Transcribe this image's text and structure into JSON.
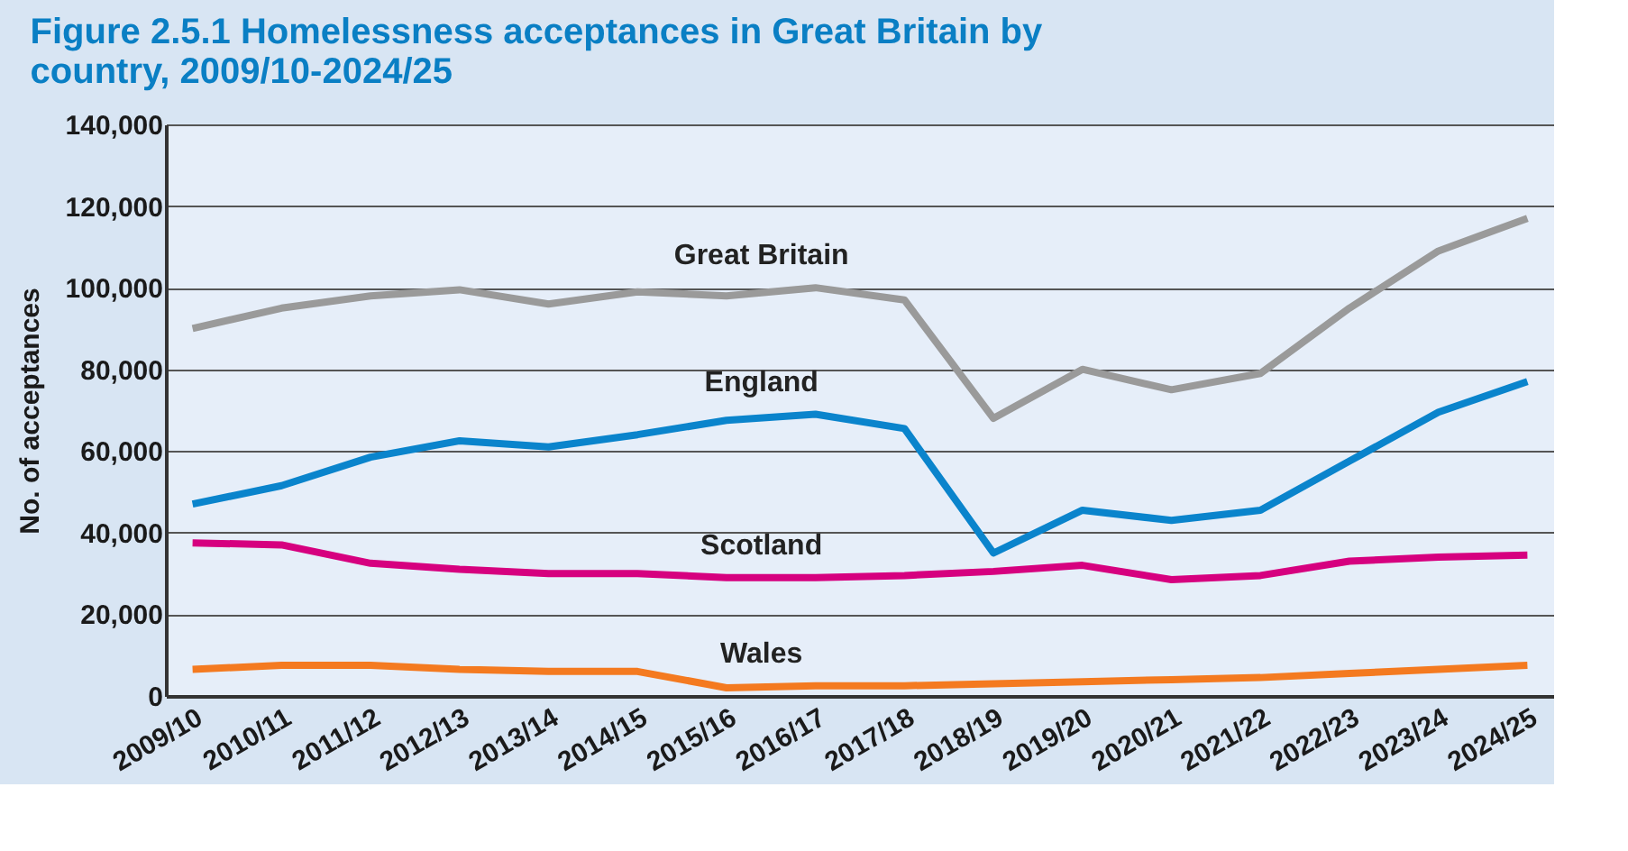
{
  "chart_data": {
    "type": "line",
    "title": "Figure 2.5.1 Homelessness acceptances in Great Britain by country, 2009/10-2024/25",
    "ylabel": "No. of acceptances",
    "categories": [
      "2009/10",
      "2010/11",
      "2011/12",
      "2012/13",
      "2013/14",
      "2014/15",
      "2015/16",
      "2016/17",
      "2017/18",
      "2018/19",
      "2019/20",
      "2020/21",
      "2021/22",
      "2022/23",
      "2023/24",
      "2024/25"
    ],
    "series": [
      {
        "name": "Great Britain",
        "color": "#9a9a9a",
        "values": [
          90000,
          95000,
          98000,
          99500,
          96000,
          99000,
          98000,
          100000,
          97000,
          68000,
          80000,
          75000,
          79000,
          95000,
          109000,
          117000
        ]
      },
      {
        "name": "England",
        "color": "#0a84cc",
        "values": [
          47000,
          51500,
          58500,
          62500,
          61000,
          64000,
          67500,
          69000,
          65500,
          35000,
          45500,
          43000,
          45500,
          57500,
          69500,
          77000
        ]
      },
      {
        "name": "Scotland",
        "color": "#d6007f",
        "values": [
          37500,
          37000,
          32500,
          31000,
          30000,
          30000,
          29000,
          29000,
          29500,
          30500,
          32000,
          28500,
          29500,
          33000,
          34000,
          34500
        ]
      },
      {
        "name": "Wales",
        "color": "#f47a20",
        "values": [
          6500,
          7500,
          7500,
          6500,
          6000,
          6000,
          2000,
          2500,
          2500,
          3000,
          3500,
          4000,
          4500,
          5500,
          6500,
          7500
        ]
      }
    ],
    "ylim": [
      0,
      140000
    ],
    "yticks": [
      0,
      {
        "value": 20000,
        "label": "20,000"
      },
      {
        "value": 40000,
        "label": "40,000"
      },
      {
        "value": 60000,
        "label": "60,000"
      },
      {
        "value": 80000,
        "label": "80,000"
      },
      {
        "value": 100000,
        "label": "100,000"
      },
      {
        "value": 120000,
        "label": "120,000"
      },
      {
        "value": 140000,
        "label": "140,000"
      }
    ],
    "grid": "y",
    "marker": "none",
    "line_style": "solid"
  }
}
